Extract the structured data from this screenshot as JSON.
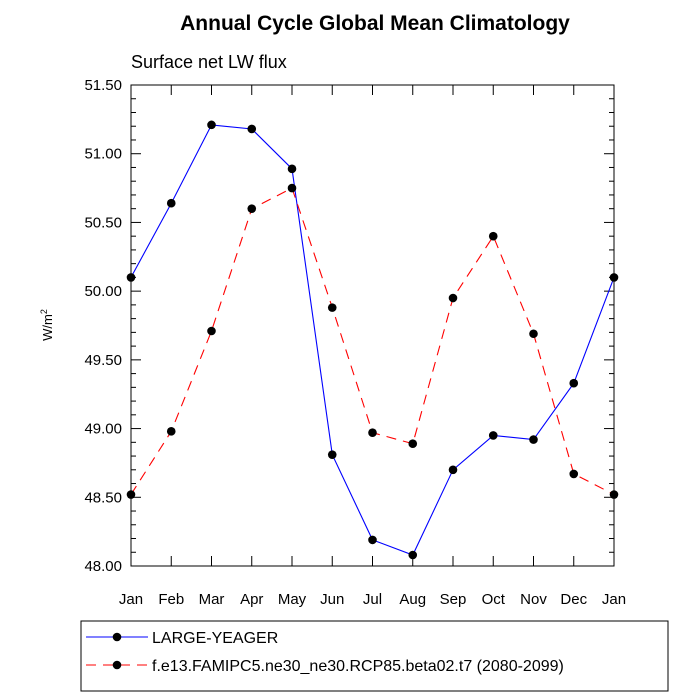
{
  "chart_data": {
    "type": "line",
    "title": "Annual Cycle Global Mean Climatology",
    "subtitle": "Surface net LW flux",
    "ylabel": "W/m",
    "ylabel_sup": "2",
    "xlabel": "",
    "categories": [
      "Jan",
      "Feb",
      "Mar",
      "Apr",
      "May",
      "Jun",
      "Jul",
      "Aug",
      "Sep",
      "Oct",
      "Nov",
      "Dec",
      "Jan"
    ],
    "ylim": [
      48.0,
      51.5
    ],
    "yticks": [
      "48.00",
      "48.50",
      "49.00",
      "49.50",
      "50.00",
      "50.50",
      "51.00",
      "51.50"
    ],
    "grid": false,
    "legend_position": "bottom-left",
    "series": [
      {
        "name": "LARGE-YEAGER",
        "color": "#0000ff",
        "dash": "solid",
        "values": [
          50.1,
          50.64,
          51.21,
          51.18,
          50.89,
          48.81,
          48.19,
          48.08,
          48.7,
          48.95,
          48.92,
          49.33,
          50.1
        ]
      },
      {
        "name": "f.e13.FAMIPC5.ne30_ne30.RCP85.beta02.t7 (2080-2099)",
        "color": "#ff0000",
        "dash": "dashed",
        "values": [
          48.52,
          48.98,
          49.71,
          50.6,
          50.75,
          49.88,
          48.97,
          48.89,
          49.95,
          50.4,
          49.69,
          48.67,
          48.52
        ]
      }
    ]
  }
}
